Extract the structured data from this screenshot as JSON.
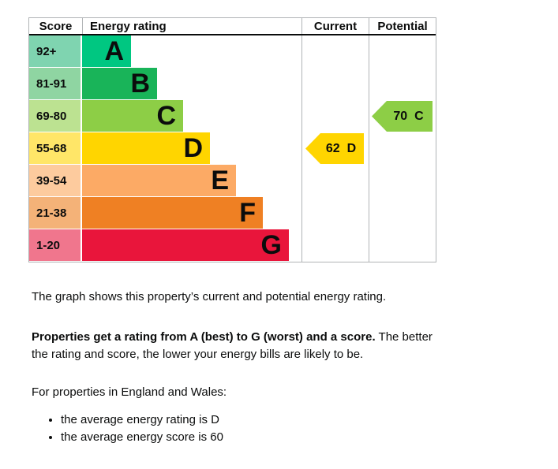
{
  "chart": {
    "headers": {
      "score": "Score",
      "rating": "Energy rating",
      "current": "Current",
      "potential": "Potential"
    },
    "bands": [
      {
        "letter": "A",
        "score_range": "92+",
        "color": "#00c781",
        "score_bg": "#7fd4b0"
      },
      {
        "letter": "B",
        "score_range": "81-91",
        "color": "#19b459",
        "score_bg": "#8fd5a2"
      },
      {
        "letter": "C",
        "score_range": "69-80",
        "color": "#8dce46",
        "score_bg": "#bce291"
      },
      {
        "letter": "D",
        "score_range": "55-68",
        "color": "#ffd500",
        "score_bg": "#ffe668"
      },
      {
        "letter": "E",
        "score_range": "39-54",
        "color": "#fcaa65",
        "score_bg": "#fdcb9e"
      },
      {
        "letter": "F",
        "score_range": "21-38",
        "color": "#ef8023",
        "score_bg": "#f4b278"
      },
      {
        "letter": "G",
        "score_range": "1-20",
        "color": "#e9153b",
        "score_bg": "#f0768d"
      }
    ],
    "current": {
      "value": "62",
      "band": "D",
      "color": "#ffd500"
    },
    "potential": {
      "value": "70",
      "band": "C",
      "color": "#8dce46"
    }
  },
  "chart_data": {
    "type": "bar",
    "title": "Energy rating",
    "columns": [
      "Score",
      "Energy rating",
      "Current",
      "Potential"
    ],
    "categories": [
      "A",
      "B",
      "C",
      "D",
      "E",
      "F",
      "G"
    ],
    "score_ranges": [
      "92+",
      "81-91",
      "69-80",
      "55-68",
      "39-54",
      "21-38",
      "1-20"
    ],
    "band_colors": [
      "#00c781",
      "#19b459",
      "#8dce46",
      "#ffd500",
      "#fcaa65",
      "#ef8023",
      "#e9153b"
    ],
    "current": {
      "score": 62,
      "band": "D"
    },
    "potential": {
      "score": 70,
      "band": "C"
    },
    "orientation": "horizontal",
    "grid": false,
    "legend_position": "none"
  },
  "text": {
    "intro": "The graph shows this property’s current and potential energy rating.",
    "rating_bold": "Properties get a rating from A (best) to G (worst) and a score.",
    "rating_rest_line1": "The better",
    "rating_rest_line2": "the rating and score, the lower your energy bills are likely to be.",
    "region_line": "For properties in England and Wales:",
    "bullets": [
      "the average energy rating is D",
      "the average energy score is 60"
    ]
  }
}
